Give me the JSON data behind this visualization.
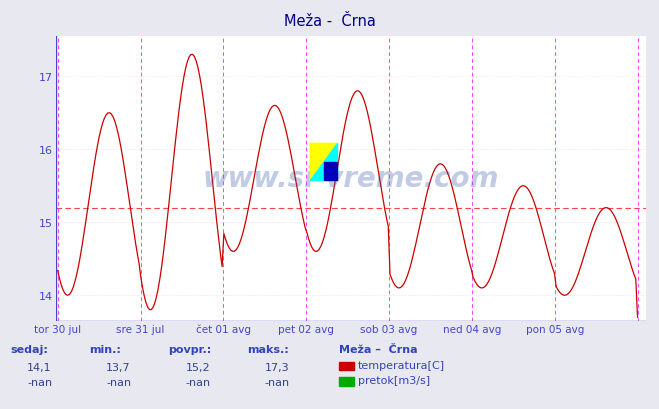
{
  "title": "Meža -  Črna",
  "bg_color": "#e8e8f0",
  "plot_bg_color": "#ffffff",
  "grid_color": "#ffcccc",
  "vline_color": "#ff44ff",
  "avg_line_color": "#ff4444",
  "temp_line_color": "#cc0000",
  "axis_color": "#4444cc",
  "title_color": "#000088",
  "watermark": "www.si-vreme.com",
  "x_labels": [
    "tor 30 jul",
    "sre 31 jul",
    "čet 01 avg",
    "pet 02 avg",
    "sob 03 avg",
    "ned 04 avg",
    "pon 05 avg"
  ],
  "y_ticks": [
    14,
    15,
    16,
    17
  ],
  "ylim_min": 13.7,
  "ylim_max": 17.5,
  "avg_value": 15.2,
  "info_labels": [
    "sedaj:",
    "min.:",
    "povpr.:",
    "maks.:"
  ],
  "info_values": [
    "14,1",
    "13,7",
    "15,2",
    "17,3"
  ],
  "info_values2": [
    "-nan",
    "-nan",
    "-nan",
    "-nan"
  ],
  "legend_title": "Meža –  Črna",
  "legend_items": [
    {
      "label": "temperatura[C]",
      "color": "#cc0000"
    },
    {
      "label": "pretok[m3/s]",
      "color": "#00aa00"
    }
  ],
  "n_days": 7,
  "n_per_day": 48,
  "temp_peaks": [
    16.5,
    17.3,
    16.6,
    16.6,
    16.8,
    15.85,
    15.55
  ],
  "temp_troughs": [
    14.0,
    13.8,
    14.6,
    14.6,
    14.1,
    14.1,
    14.0
  ],
  "peak_phase": [
    0.55,
    0.55,
    0.55,
    0.55,
    0.45,
    0.55,
    0.55
  ],
  "trough_phase": [
    0.05,
    0.05,
    0.05,
    0.05,
    0.05,
    0.05,
    0.05
  ]
}
